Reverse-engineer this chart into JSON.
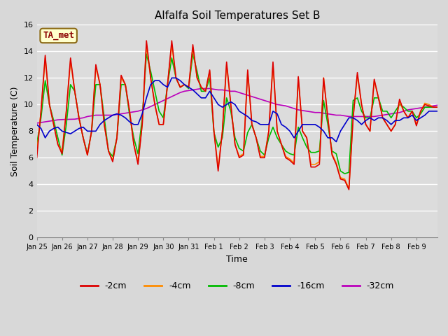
{
  "title": "Alfalfa Soil Temperatures Set B",
  "xlabel": "Time",
  "ylabel": "Soil Temperature (C)",
  "ylim": [
    0,
    16
  ],
  "yticks": [
    0,
    2,
    4,
    6,
    8,
    10,
    12,
    14,
    16
  ],
  "xtick_labels": [
    "Jan 25",
    "Jan 26",
    "Jan 27",
    "Jan 28",
    "Jan 29",
    "Jan 30",
    "Jan 31",
    "Feb 1",
    "Feb 2",
    "Feb 3",
    "Feb 4",
    "Feb 5",
    "Feb 6",
    "Feb 7",
    "Feb 8",
    "Feb 9"
  ],
  "annotation_text": "TA_met",
  "annotation_color": "#8B0000",
  "annotation_bg": "#FFFFCC",
  "background_color": "#DCDCDC",
  "grid_color": "#FFFFFF",
  "fig_bg": "#D8D8D8",
  "colors": {
    "-2cm": "#DD0000",
    "-4cm": "#FF8C00",
    "-8cm": "#00BB00",
    "-16cm": "#0000CC",
    "-32cm": "#BB00BB"
  },
  "legend_labels": [
    "-2cm",
    "-4cm",
    "-8cm",
    "-16cm",
    "-32cm"
  ],
  "n_days": 16,
  "pts_per_day": 6,
  "series": {
    "-2cm": [
      6.0,
      9.5,
      13.7,
      10.0,
      8.5,
      7.0,
      6.3,
      9.5,
      13.5,
      11.0,
      9.0,
      7.5,
      6.2,
      8.0,
      13.0,
      11.5,
      8.5,
      6.5,
      5.7,
      7.5,
      12.2,
      11.5,
      9.5,
      7.0,
      5.5,
      8.5,
      14.8,
      12.0,
      10.0,
      8.5,
      8.5,
      11.5,
      14.8,
      12.0,
      11.3,
      11.5,
      11.3,
      14.5,
      12.0,
      11.3,
      11.0,
      12.6,
      8.0,
      5.0,
      8.0,
      13.2,
      10.0,
      7.0,
      6.0,
      6.2,
      12.6,
      8.5,
      7.5,
      6.0,
      6.0,
      8.0,
      13.2,
      8.0,
      7.0,
      6.0,
      5.8,
      5.5,
      12.1,
      8.0,
      7.5,
      5.3,
      5.3,
      5.5,
      12.0,
      9.0,
      6.2,
      5.5,
      4.4,
      4.3,
      3.6,
      9.0,
      12.4,
      10.0,
      8.5,
      8.0,
      11.9,
      10.5,
      9.0,
      8.5,
      8.0,
      8.5,
      10.4,
      9.5,
      9.0,
      9.5,
      8.4,
      9.5,
      10.0,
      9.9,
      9.8,
      9.8
    ],
    "-4cm": [
      6.3,
      9.5,
      13.5,
      10.0,
      8.5,
      7.0,
      6.5,
      9.5,
      13.3,
      11.0,
      9.0,
      7.5,
      6.2,
      8.0,
      12.8,
      11.5,
      8.5,
      6.5,
      5.8,
      7.5,
      12.0,
      11.5,
      9.5,
      7.0,
      5.7,
      8.5,
      14.5,
      12.0,
      10.0,
      8.5,
      8.5,
      11.5,
      14.5,
      12.0,
      11.3,
      11.5,
      11.3,
      14.3,
      12.0,
      11.3,
      11.0,
      12.5,
      8.0,
      5.2,
      8.0,
      13.0,
      10.0,
      7.0,
      6.1,
      6.3,
      12.5,
      8.5,
      7.5,
      6.1,
      6.1,
      8.0,
      13.0,
      8.0,
      7.0,
      6.1,
      5.9,
      5.6,
      12.0,
      8.0,
      7.5,
      5.5,
      5.5,
      5.7,
      12.0,
      9.0,
      6.3,
      5.6,
      4.5,
      4.4,
      3.7,
      9.0,
      12.2,
      10.0,
      8.5,
      8.0,
      11.8,
      10.5,
      9.0,
      8.5,
      8.0,
      8.5,
      10.2,
      9.5,
      9.0,
      9.5,
      8.5,
      9.5,
      10.1,
      10.0,
      9.8,
      9.8
    ],
    "-8cm": [
      7.0,
      9.0,
      11.8,
      10.0,
      8.8,
      7.5,
      6.2,
      8.5,
      11.5,
      11.0,
      9.0,
      7.5,
      6.3,
      8.0,
      11.5,
      11.5,
      9.0,
      6.5,
      6.1,
      7.5,
      11.5,
      11.5,
      9.2,
      7.5,
      6.3,
      9.0,
      13.8,
      12.5,
      11.0,
      9.5,
      9.0,
      11.5,
      13.5,
      12.0,
      11.3,
      11.5,
      11.2,
      13.8,
      12.5,
      11.0,
      11.0,
      12.0,
      7.9,
      6.8,
      7.5,
      10.5,
      9.5,
      7.5,
      6.7,
      6.5,
      7.9,
      8.5,
      7.5,
      6.5,
      6.2,
      7.5,
      8.3,
      7.5,
      7.0,
      6.5,
      6.3,
      6.2,
      8.3,
      7.5,
      6.8,
      6.4,
      6.4,
      6.5,
      10.3,
      8.5,
      6.5,
      6.3,
      5.0,
      4.8,
      4.9,
      10.3,
      10.5,
      9.5,
      9.0,
      9.0,
      10.5,
      10.5,
      9.5,
      9.5,
      9.0,
      9.5,
      10.0,
      9.8,
      9.5,
      9.5,
      9.0,
      9.3,
      9.8,
      9.8,
      9.8,
      9.8
    ],
    "-16cm": [
      8.5,
      8.2,
      7.5,
      8.0,
      8.2,
      8.3,
      8.0,
      7.9,
      7.8,
      8.0,
      8.2,
      8.3,
      8.0,
      8.0,
      8.0,
      8.5,
      8.8,
      9.0,
      9.2,
      9.3,
      9.2,
      9.0,
      8.7,
      8.5,
      8.5,
      9.3,
      10.5,
      11.5,
      11.8,
      11.8,
      11.5,
      11.3,
      12.0,
      12.0,
      11.8,
      11.5,
      11.3,
      11.1,
      10.8,
      10.5,
      10.5,
      11.0,
      10.5,
      10.0,
      9.8,
      10.0,
      10.2,
      10.0,
      9.5,
      9.3,
      9.1,
      8.8,
      8.7,
      8.5,
      8.5,
      8.5,
      9.5,
      9.3,
      8.5,
      8.3,
      8.0,
      7.5,
      8.0,
      8.5,
      8.5,
      8.5,
      8.5,
      8.3,
      8.0,
      7.5,
      7.5,
      7.2,
      8.0,
      8.5,
      9.0,
      9.0,
      8.8,
      8.5,
      8.8,
      9.0,
      8.8,
      9.0,
      9.0,
      8.8,
      8.5,
      8.8,
      8.8,
      9.0,
      9.0,
      9.2,
      8.8,
      9.0,
      9.2,
      9.5,
      9.5,
      9.5
    ],
    "-32cm": [
      8.6,
      8.65,
      8.7,
      8.75,
      8.8,
      8.85,
      8.87,
      8.88,
      8.89,
      8.9,
      8.95,
      9.0,
      9.1,
      9.15,
      9.2,
      9.2,
      9.2,
      9.2,
      9.2,
      9.25,
      9.3,
      9.35,
      9.4,
      9.45,
      9.5,
      9.6,
      9.7,
      9.85,
      10.0,
      10.15,
      10.3,
      10.45,
      10.6,
      10.75,
      10.9,
      11.0,
      11.05,
      11.1,
      11.15,
      11.2,
      11.2,
      11.2,
      11.15,
      11.1,
      11.1,
      11.05,
      11.0,
      11.0,
      10.9,
      10.8,
      10.7,
      10.6,
      10.5,
      10.4,
      10.3,
      10.2,
      10.1,
      10.0,
      9.95,
      9.9,
      9.8,
      9.7,
      9.6,
      9.55,
      9.5,
      9.45,
      9.4,
      9.4,
      9.35,
      9.3,
      9.25,
      9.2,
      9.2,
      9.15,
      9.1,
      9.1,
      9.1,
      9.1,
      9.1,
      9.1,
      9.1,
      9.15,
      9.2,
      9.25,
      9.3,
      9.35,
      9.4,
      9.5,
      9.6,
      9.65,
      9.7,
      9.75,
      9.8,
      9.85,
      9.9,
      9.95
    ]
  }
}
